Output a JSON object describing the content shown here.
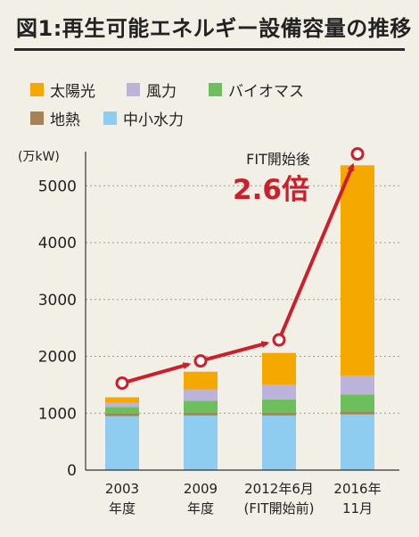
{
  "title": "図1:再生可能エネルギー設備容量の推移",
  "chart_data": {
    "type": "bar",
    "stacked": true,
    "unit_label": "(万kW)",
    "categories": [
      {
        "line1": "2003",
        "line2": "年度"
      },
      {
        "line1": "2009",
        "line2": "年度"
      },
      {
        "line1": "2012年6月",
        "line2": "(FIT開始前)"
      },
      {
        "line1": "2016年",
        "line2": "11月"
      }
    ],
    "series": [
      {
        "name": "中小水力",
        "color": "#8ecdf0",
        "values": [
          950,
          960,
          960,
          980
        ]
      },
      {
        "name": "地熱",
        "color": "#a88252",
        "values": [
          50,
          50,
          50,
          50
        ]
      },
      {
        "name": "バイオマス",
        "color": "#6cbf5c",
        "values": [
          110,
          210,
          230,
          300
        ]
      },
      {
        "name": "風力",
        "color": "#bcb3db",
        "values": [
          70,
          200,
          260,
          330
        ]
      },
      {
        "name": "太陽光",
        "color": "#f5a800",
        "values": [
          100,
          310,
          560,
          3700
        ]
      }
    ],
    "legend": {
      "row1": [
        "太陽光",
        "風力",
        "バイオマス"
      ],
      "row2": [
        "地熱",
        "中小水力"
      ]
    },
    "ylim": [
      0,
      5600
    ],
    "yticks": [
      0,
      1000,
      2000,
      3000,
      4000,
      5000
    ],
    "grid": true,
    "trend_points": [
      1530,
      1920,
      2290,
      5560
    ],
    "trend_color": "#cc1f2a",
    "annotation": {
      "label": "FIT開始後",
      "value": "2.6倍"
    }
  }
}
